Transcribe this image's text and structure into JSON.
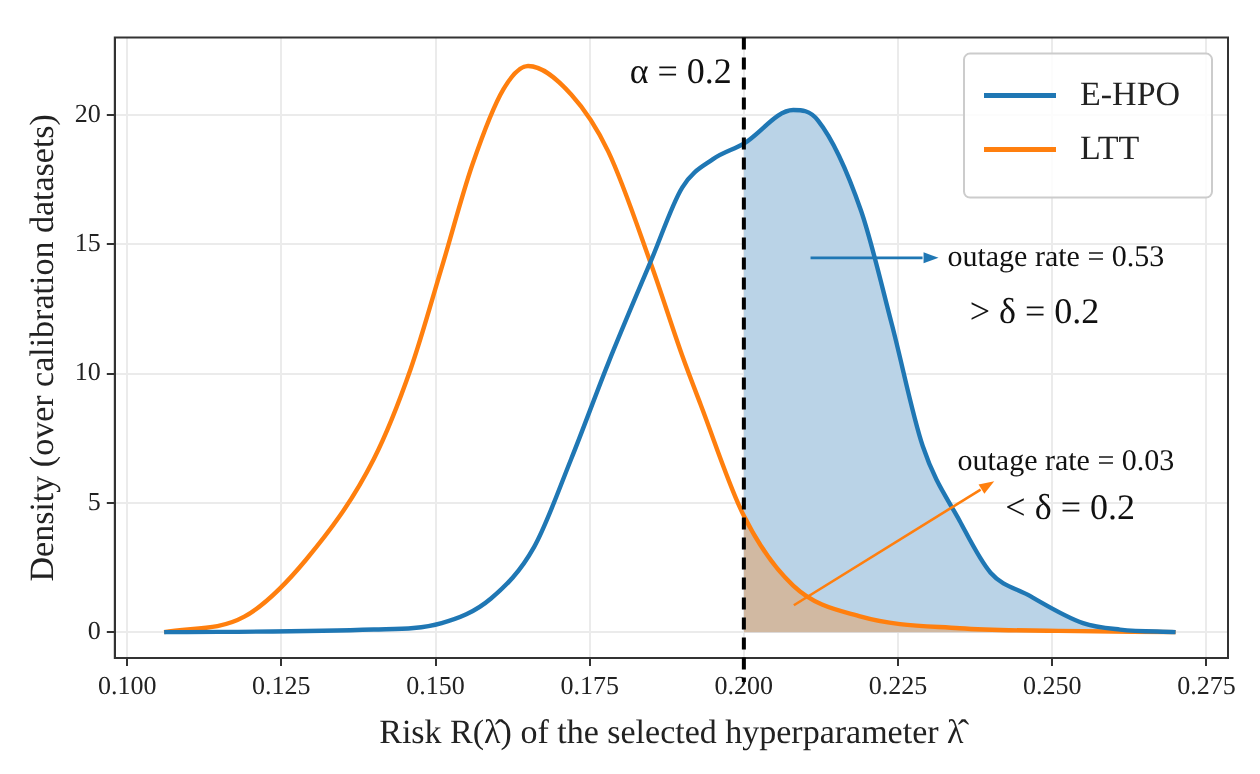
{
  "chart_data": {
    "type": "line",
    "xlabel": "Risk R(λ̂) of the selected hyperparameter λ̂",
    "ylabel": "Density (over calibration datasets)",
    "xlim": [
      0.098,
      0.2785
    ],
    "ylim": [
      -1,
      23
    ],
    "xticks": [
      {
        "value": 0.1,
        "label": "0.100"
      },
      {
        "value": 0.125,
        "label": "0.125"
      },
      {
        "value": 0.15,
        "label": "0.150"
      },
      {
        "value": 0.175,
        "label": "0.175"
      },
      {
        "value": 0.2,
        "label": "0.200"
      },
      {
        "value": 0.225,
        "label": "0.225"
      },
      {
        "value": 0.25,
        "label": "0.250"
      },
      {
        "value": 0.275,
        "label": "0.275"
      }
    ],
    "yticks": [
      0,
      5,
      10,
      15,
      20
    ],
    "grid": true,
    "legend": "top right",
    "marker": "none",
    "line_style": "solid",
    "series": [
      {
        "type": "area",
        "color": "#bad3e7",
        "x": [
          0.2,
          0.208,
          0.212,
          0.219,
          0.224,
          0.229,
          0.235,
          0.24,
          0.246,
          0.255,
          0.261,
          0.27
        ],
        "values": [
          18.9,
          20.2,
          19.8,
          16.3,
          11.9,
          7.2,
          4.3,
          2.3,
          1.45,
          0.35,
          0.1,
          0
        ]
      },
      {
        "type": "area",
        "color": "#d1b9a2",
        "x": [
          0.2,
          0.208,
          0.219,
          0.235,
          0.251,
          0.27
        ],
        "values": [
          4.5,
          1.8,
          0.6,
          0.15,
          0.05,
          0
        ]
      },
      {
        "name": "E-HPO",
        "color": "#1f77b4",
        "x": [
          0.106,
          0.14,
          0.151,
          0.159,
          0.166,
          0.172,
          0.178,
          0.185,
          0.19,
          0.195,
          0.2,
          0.208,
          0.212,
          0.219,
          0.224,
          0.229,
          0.235,
          0.24,
          0.246,
          0.255,
          0.261,
          0.27
        ],
        "values": [
          0,
          0.1,
          0.35,
          1.3,
          3.3,
          6.7,
          10.4,
          14.4,
          17.2,
          18.3,
          18.9,
          20.2,
          19.8,
          16.3,
          11.9,
          7.2,
          4.3,
          2.3,
          1.45,
          0.35,
          0.1,
          0
        ]
      },
      {
        "name": "LTT",
        "color": "#ff7f0e",
        "x": [
          0.106,
          0.119,
          0.129,
          0.14,
          0.146,
          0.151,
          0.156,
          0.161,
          0.165,
          0.172,
          0.178,
          0.185,
          0.19,
          0.193,
          0.2,
          0.208,
          0.219,
          0.235,
          0.251,
          0.27
        ],
        "values": [
          0,
          0.6,
          2.8,
          6.7,
          10.2,
          14.1,
          18.1,
          21.0,
          21.9,
          20.8,
          18.6,
          14.2,
          10.7,
          8.8,
          4.5,
          1.8,
          0.6,
          0.15,
          0.05,
          0
        ]
      }
    ],
    "ref_lines": [
      {
        "axis": "x",
        "value": 0.2,
        "label": "α = 0.2",
        "color": "#000000",
        "line_style": "dashed"
      }
    ],
    "annotations": [
      "outage rate = 0.53",
      "> δ = 0.2",
      "outage rate = 0.03",
      "< δ = 0.2"
    ]
  }
}
